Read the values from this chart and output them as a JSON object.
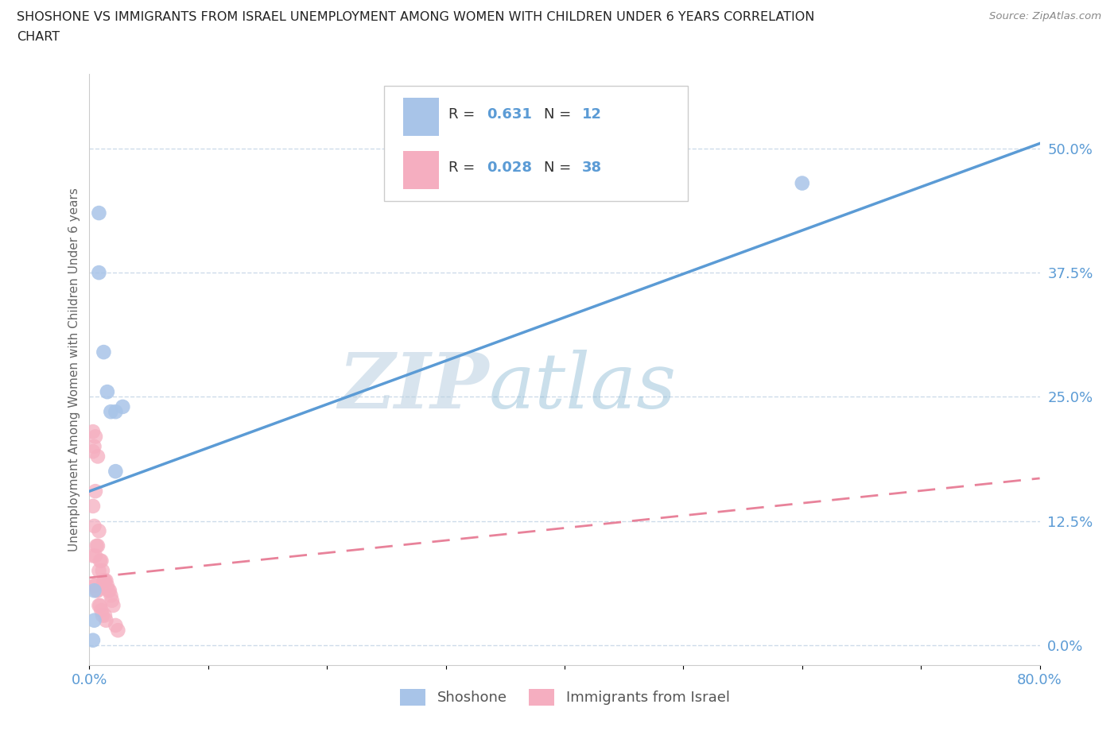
{
  "title_line1": "SHOSHONE VS IMMIGRANTS FROM ISRAEL UNEMPLOYMENT AMONG WOMEN WITH CHILDREN UNDER 6 YEARS CORRELATION",
  "title_line2": "CHART",
  "source": "Source: ZipAtlas.com",
  "ylabel": "Unemployment Among Women with Children Under 6 years",
  "xlim": [
    0.0,
    0.8
  ],
  "ylim": [
    -0.02,
    0.575
  ],
  "yticks": [
    0.0,
    0.125,
    0.25,
    0.375,
    0.5
  ],
  "yticklabels": [
    "0.0%",
    "12.5%",
    "25.0%",
    "37.5%",
    "50.0%"
  ],
  "xticks": [
    0.0,
    0.1,
    0.2,
    0.3,
    0.4,
    0.5,
    0.6,
    0.7,
    0.8
  ],
  "watermark_zip": "ZIP",
  "watermark_atlas": "atlas",
  "group1_color": "#a8c4e8",
  "group2_color": "#f5aec0",
  "group1_label": "Shoshone",
  "group2_label": "Immigrants from Israel",
  "group1_R": 0.631,
  "group1_N": 12,
  "group2_R": 0.028,
  "group2_N": 38,
  "group1_line_color": "#5b9bd5",
  "group2_line_color": "#e8829a",
  "tick_color": "#5b9bd5",
  "background_color": "#ffffff",
  "grid_color": "#c8d8e8",
  "shoshone_x": [
    0.008,
    0.008,
    0.012,
    0.015,
    0.018,
    0.022,
    0.022,
    0.028,
    0.6,
    0.004,
    0.004,
    0.003
  ],
  "shoshone_y": [
    0.435,
    0.375,
    0.295,
    0.255,
    0.235,
    0.235,
    0.175,
    0.24,
    0.465,
    0.025,
    0.055,
    0.005
  ],
  "israel_x": [
    0.003,
    0.003,
    0.003,
    0.003,
    0.004,
    0.004,
    0.004,
    0.005,
    0.005,
    0.005,
    0.005,
    0.006,
    0.006,
    0.007,
    0.007,
    0.007,
    0.008,
    0.008,
    0.008,
    0.009,
    0.009,
    0.01,
    0.01,
    0.011,
    0.011,
    0.012,
    0.013,
    0.013,
    0.014,
    0.014,
    0.015,
    0.016,
    0.017,
    0.018,
    0.019,
    0.02,
    0.022,
    0.024
  ],
  "israel_y": [
    0.215,
    0.195,
    0.14,
    0.09,
    0.2,
    0.12,
    0.06,
    0.21,
    0.155,
    0.09,
    0.06,
    0.1,
    0.055,
    0.19,
    0.1,
    0.055,
    0.115,
    0.075,
    0.04,
    0.085,
    0.04,
    0.085,
    0.035,
    0.075,
    0.03,
    0.065,
    0.065,
    0.03,
    0.065,
    0.025,
    0.06,
    0.055,
    0.055,
    0.05,
    0.045,
    0.04,
    0.02,
    0.015
  ],
  "shoshone_line_x": [
    0.0,
    0.8
  ],
  "shoshone_line_y": [
    0.155,
    0.505
  ],
  "israel_line_x": [
    0.0,
    0.8
  ],
  "israel_line_y": [
    0.068,
    0.168
  ]
}
